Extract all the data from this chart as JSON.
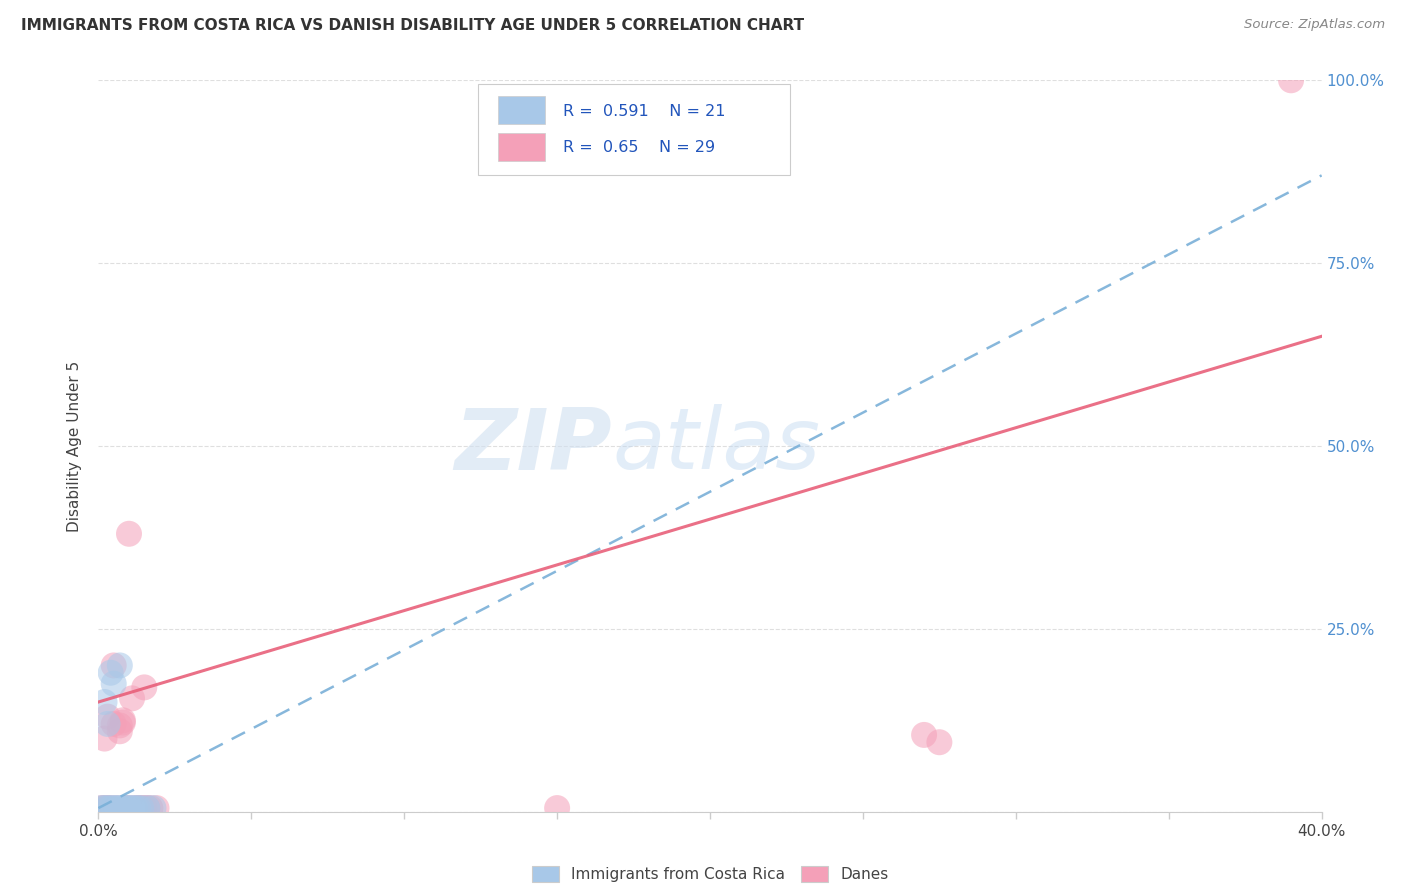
{
  "title": "IMMIGRANTS FROM COSTA RICA VS DANISH DISABILITY AGE UNDER 5 CORRELATION CHART",
  "source": "Source: ZipAtlas.com",
  "ylabel": "Disability Age Under 5",
  "xlim": [
    0.0,
    0.4
  ],
  "ylim": [
    0.0,
    1.0
  ],
  "xticks": [
    0.0,
    0.05,
    0.1,
    0.15,
    0.2,
    0.25,
    0.3,
    0.35,
    0.4
  ],
  "yticks": [
    0.0,
    0.25,
    0.5,
    0.75,
    1.0
  ],
  "yticklabels_right": [
    "",
    "25.0%",
    "50.0%",
    "75.0%",
    "100.0%"
  ],
  "r_blue": 0.591,
  "n_blue": 21,
  "r_pink": 0.65,
  "n_pink": 29,
  "blue_color": "#a8c8e8",
  "pink_color": "#f4a0b8",
  "blue_line_color": "#7ab0d8",
  "pink_line_color": "#e8607a",
  "right_axis_color": "#5090d0",
  "watermark_zip": "ZIP",
  "watermark_atlas": "atlas",
  "blue_scatter_x": [
    0.001,
    0.002,
    0.002,
    0.003,
    0.003,
    0.004,
    0.004,
    0.005,
    0.005,
    0.006,
    0.007,
    0.007,
    0.008,
    0.009,
    0.01,
    0.011,
    0.012,
    0.013,
    0.014,
    0.016,
    0.018
  ],
  "blue_scatter_y": [
    0.005,
    0.15,
    0.005,
    0.12,
    0.005,
    0.005,
    0.19,
    0.005,
    0.175,
    0.005,
    0.005,
    0.2,
    0.005,
    0.005,
    0.005,
    0.005,
    0.005,
    0.005,
    0.005,
    0.005,
    0.005
  ],
  "pink_scatter_x": [
    0.001,
    0.002,
    0.002,
    0.003,
    0.003,
    0.004,
    0.005,
    0.005,
    0.006,
    0.007,
    0.007,
    0.008,
    0.008,
    0.009,
    0.01,
    0.01,
    0.011,
    0.012,
    0.013,
    0.014,
    0.015,
    0.015,
    0.016,
    0.017,
    0.019,
    0.15,
    0.27,
    0.275,
    0.39
  ],
  "pink_scatter_y": [
    0.005,
    0.1,
    0.005,
    0.13,
    0.005,
    0.005,
    0.12,
    0.2,
    0.005,
    0.11,
    0.118,
    0.122,
    0.125,
    0.005,
    0.005,
    0.38,
    0.155,
    0.005,
    0.005,
    0.005,
    0.005,
    0.17,
    0.005,
    0.005,
    0.005,
    0.005,
    0.105,
    0.095,
    1.0
  ],
  "blue_trend_x": [
    0.0,
    0.4
  ],
  "blue_trend_y": [
    0.005,
    0.87
  ],
  "pink_trend_x": [
    0.0,
    0.4
  ],
  "pink_trend_y": [
    0.15,
    0.65
  ],
  "background_color": "#ffffff",
  "grid_color": "#d8d8d8"
}
